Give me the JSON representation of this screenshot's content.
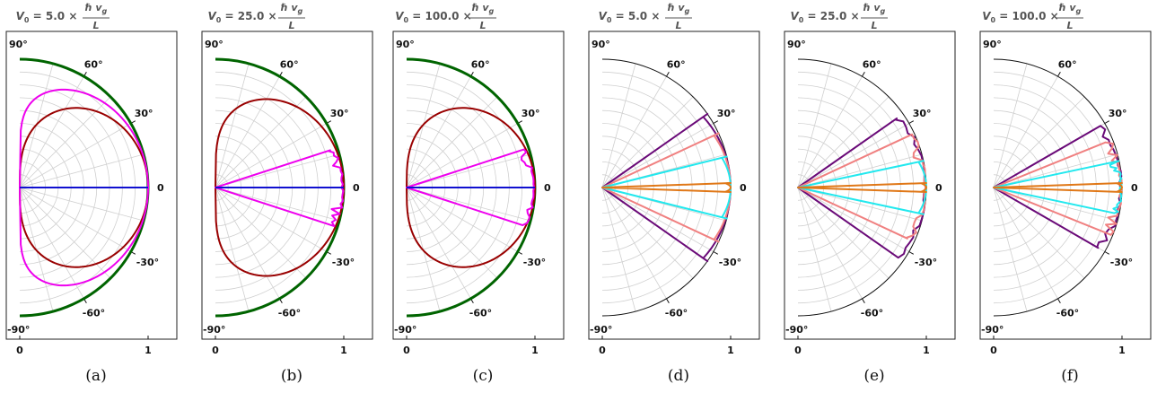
{
  "colors": {
    "green": "#006400",
    "darkred": "#990000",
    "magenta": "#ee00ee",
    "blue": "#1010d0",
    "purple": "#6a0a78",
    "salmon": "#f08080",
    "cyan": "#22e8ee",
    "orange": "#e07818",
    "grid": "#d0d0d0",
    "title": "#555555"
  },
  "chart_data": [
    {
      "type": "polar",
      "caption": "(a)",
      "title": {
        "lhs": "V",
        "sub": "0",
        "value": "= 5.0 ×",
        "numerator": "ℏ v",
        "numerator_sub": "g",
        "denominator": "L"
      },
      "angle_range_deg": [
        -90,
        90
      ],
      "radius_range": [
        0,
        1
      ],
      "angle_ticks": [
        "90°",
        "60°",
        "30°",
        "0",
        "-30°",
        "-60°",
        "-90°"
      ],
      "radius_ticks": [
        "0",
        "1"
      ],
      "grid": true,
      "series": [
        {
          "color_key": "green",
          "shape": "semicircle",
          "p": 0
        },
        {
          "color_key": "darkred",
          "shape": "lobe",
          "p": 0.5
        },
        {
          "color_key": "magenta",
          "shape": "lobe",
          "p": 0.2
        },
        {
          "color_key": "blue",
          "shape": "line"
        }
      ]
    },
    {
      "type": "polar",
      "caption": "(b)",
      "title": {
        "lhs": "V",
        "sub": "0",
        "value": "= 25.0 ×",
        "numerator": "ℏ v",
        "numerator_sub": "g",
        "denominator": "L"
      },
      "angle_range_deg": [
        -90,
        90
      ],
      "radius_range": [
        0,
        1
      ],
      "angle_ticks": [
        "90°",
        "60°",
        "30°",
        "0",
        "-30°",
        "-60°",
        "-90°"
      ],
      "radius_ticks": [
        "0",
        "1"
      ],
      "grid": true,
      "series": [
        {
          "color_key": "green",
          "shape": "semicircle",
          "p": 0
        },
        {
          "color_key": "darkred",
          "shape": "lobe",
          "p": 0.33
        },
        {
          "color_key": "magenta",
          "shape": "wedge",
          "half_angle_deg": 18,
          "ragged": true
        },
        {
          "color_key": "blue",
          "shape": "line"
        }
      ]
    },
    {
      "type": "polar",
      "caption": "(c)",
      "title": {
        "lhs": "V",
        "sub": "0",
        "value": "= 100.0 ×",
        "numerator": "ℏ v",
        "numerator_sub": "g",
        "denominator": "L"
      },
      "angle_range_deg": [
        -90,
        90
      ],
      "radius_range": [
        0,
        1
      ],
      "angle_ticks": [
        "90°",
        "60°",
        "30°",
        "0",
        "-30°",
        "-60°",
        "-90°"
      ],
      "radius_ticks": [
        "0",
        "1"
      ],
      "grid": true,
      "series": [
        {
          "color_key": "green",
          "shape": "semicircle",
          "p": 0
        },
        {
          "color_key": "darkred",
          "shape": "lobe",
          "p": 0.5
        },
        {
          "color_key": "magenta",
          "shape": "wedge",
          "half_angle_deg": 18,
          "ragged": true
        },
        {
          "color_key": "blue",
          "shape": "line"
        }
      ]
    },
    {
      "type": "polar",
      "caption": "(d)",
      "title": {
        "lhs": "V",
        "sub": "0",
        "value": "= 5.0 ×",
        "numerator": "ℏ v",
        "numerator_sub": "g",
        "denominator": "L"
      },
      "angle_range_deg": [
        -90,
        90
      ],
      "radius_range": [
        0,
        1
      ],
      "angle_ticks": [
        "90°",
        "60°",
        "30°",
        "0",
        "-30°",
        "-60°",
        "-90°"
      ],
      "radius_ticks": [
        "0",
        "1"
      ],
      "grid": true,
      "series": [
        {
          "color_key": "purple",
          "shape": "wedge",
          "half_angle_deg": 35,
          "ragged": false
        },
        {
          "color_key": "salmon",
          "shape": "wedge",
          "half_angle_deg": 25,
          "ragged": false
        },
        {
          "color_key": "cyan",
          "shape": "wedge",
          "half_angle_deg": 14,
          "ragged": false
        },
        {
          "color_key": "orange",
          "shape": "wedge",
          "half_angle_deg": 2,
          "ragged": false
        }
      ]
    },
    {
      "type": "polar",
      "caption": "(e)",
      "title": {
        "lhs": "V",
        "sub": "0",
        "value": "= 25.0 ×",
        "numerator": "ℏ v",
        "numerator_sub": "g",
        "denominator": "L"
      },
      "angle_range_deg": [
        -90,
        90
      ],
      "radius_range": [
        0,
        1
      ],
      "angle_ticks": [
        "90°",
        "60°",
        "30°",
        "0",
        "-30°",
        "-60°",
        "-90°"
      ],
      "radius_ticks": [
        "0",
        "1"
      ],
      "grid": true,
      "series": [
        {
          "color_key": "purple",
          "shape": "wedge",
          "half_angle_deg": 35,
          "ragged": true
        },
        {
          "color_key": "salmon",
          "shape": "wedge",
          "half_angle_deg": 25,
          "ragged": true
        },
        {
          "color_key": "cyan",
          "shape": "wedge",
          "half_angle_deg": 12,
          "ragged": false
        },
        {
          "color_key": "orange",
          "shape": "wedge",
          "half_angle_deg": 2,
          "ragged": false
        }
      ]
    },
    {
      "type": "polar",
      "caption": "(f)",
      "title": {
        "lhs": "V",
        "sub": "0",
        "value": "= 100.0 ×",
        "numerator": "ℏ v",
        "numerator_sub": "g",
        "denominator": "L"
      },
      "angle_range_deg": [
        -90,
        90
      ],
      "radius_range": [
        0,
        1
      ],
      "angle_ticks": [
        "90°",
        "60°",
        "30°",
        "0",
        "-30°",
        "-60°",
        "-90°"
      ],
      "radius_ticks": [
        "0",
        "1"
      ],
      "grid": true,
      "series": [
        {
          "color_key": "purple",
          "shape": "wedge",
          "half_angle_deg": 30,
          "ragged": true
        },
        {
          "color_key": "salmon",
          "shape": "wedge",
          "half_angle_deg": 22,
          "ragged": true
        },
        {
          "color_key": "cyan",
          "shape": "wedge",
          "half_angle_deg": 12,
          "ragged": true
        },
        {
          "color_key": "orange",
          "shape": "wedge",
          "half_angle_deg": 2,
          "ragged": false
        }
      ]
    }
  ]
}
